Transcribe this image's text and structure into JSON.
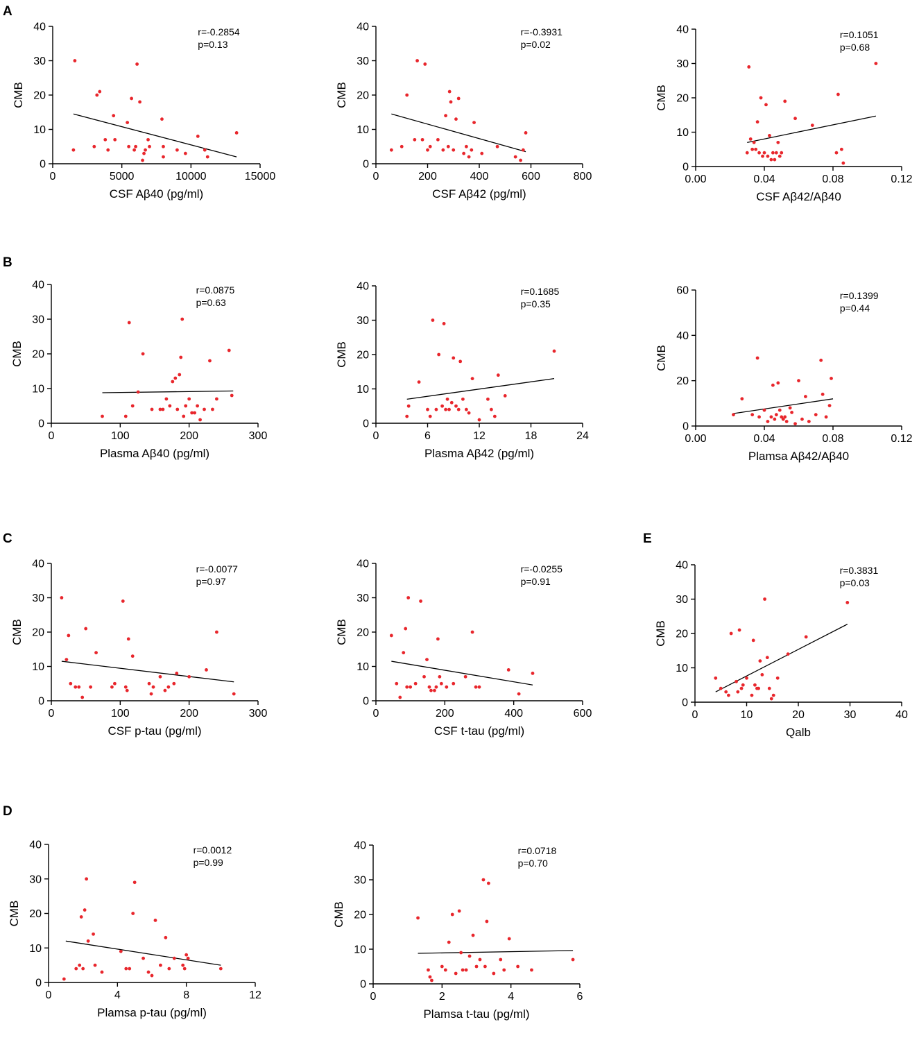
{
  "figure": {
    "panel_letters": [
      "A",
      "B",
      "C",
      "D",
      "E"
    ]
  },
  "colors": {
    "points": "#e8262c",
    "line": "#000000",
    "axes": "#000000"
  },
  "chart_data": [
    {
      "id": "A1",
      "panel": "A",
      "type": "scatter",
      "xlabel": "CSF Aβ40 (pg/ml)",
      "ylabel": "CMB",
      "xlim": [
        0,
        15000
      ],
      "ylim": [
        0,
        40
      ],
      "xticks": [
        "0",
        "5000",
        "10000",
        "15000"
      ],
      "yticks": [
        "0",
        "10",
        "20",
        "30",
        "40"
      ],
      "r_text": "r=-0.2854",
      "p_text": "p=0.13",
      "x": [
        1500,
        1600,
        3000,
        3200,
        3400,
        3800,
        4000,
        4400,
        4500,
        5400,
        5500,
        5700,
        5900,
        6000,
        6100,
        6300,
        6500,
        6600,
        6700,
        6900,
        7000,
        7900,
        8000,
        8000,
        9000,
        9600,
        10500,
        11000,
        11200,
        13300
      ],
      "y": [
        4,
        30,
        5,
        20,
        21,
        7,
        4,
        14,
        7,
        12,
        5,
        19,
        4,
        5,
        29,
        18,
        1,
        3,
        4,
        7,
        5,
        13,
        5,
        2,
        4,
        3,
        8,
        4,
        2,
        9
      ],
      "fit": {
        "x": [
          1500,
          13300
        ],
        "y": [
          14.5,
          2
        ]
      }
    },
    {
      "id": "A2",
      "panel": "A",
      "type": "scatter",
      "xlabel": "CSF Aβ42 (pg/ml)",
      "ylabel": "CMB",
      "xlim": [
        0,
        800
      ],
      "ylim": [
        0,
        40
      ],
      "xticks": [
        "0",
        "200",
        "400",
        "600",
        "800"
      ],
      "yticks": [
        "0",
        "10",
        "20",
        "30",
        "40"
      ],
      "r_text": "r=-0.3931",
      "p_text": "p=0.02",
      "x": [
        60,
        100,
        120,
        150,
        160,
        180,
        190,
        200,
        210,
        240,
        260,
        270,
        280,
        285,
        290,
        300,
        310,
        320,
        340,
        350,
        360,
        370,
        380,
        410,
        470,
        540,
        560,
        570,
        580
      ],
      "y": [
        4,
        5,
        20,
        7,
        30,
        7,
        29,
        4,
        5,
        7,
        4,
        14,
        5,
        21,
        18,
        4,
        13,
        19,
        3,
        5,
        2,
        4,
        12,
        3,
        5,
        2,
        1,
        4,
        9
      ],
      "fit": {
        "x": [
          60,
          580
        ],
        "y": [
          14.5,
          3.5
        ]
      }
    },
    {
      "id": "A3",
      "panel": "A",
      "type": "scatter",
      "xlabel": "CSF Aβ42/Aβ40",
      "ylabel": "CMB",
      "xlim": [
        0,
        0.12
      ],
      "ylim": [
        0,
        40
      ],
      "xticks": [
        "0.00",
        "0.04",
        "0.08",
        "0.12"
      ],
      "yticks": [
        "0",
        "10",
        "20",
        "30",
        "40"
      ],
      "r_text": "r=0.1051",
      "p_text": "p=0.68",
      "x": [
        0.03,
        0.031,
        0.032,
        0.033,
        0.034,
        0.035,
        0.036,
        0.037,
        0.038,
        0.039,
        0.04,
        0.041,
        0.042,
        0.043,
        0.044,
        0.045,
        0.046,
        0.047,
        0.048,
        0.049,
        0.05,
        0.052,
        0.058,
        0.068,
        0.082,
        0.083,
        0.085,
        0.086,
        0.105
      ],
      "y": [
        4,
        29,
        8,
        5,
        7,
        5,
        13,
        4,
        20,
        3,
        4,
        18,
        3,
        9,
        2,
        4,
        2,
        4,
        7,
        3,
        4,
        19,
        14,
        12,
        4,
        21,
        5,
        1,
        30
      ],
      "fit": {
        "x": [
          0.03,
          0.105
        ],
        "y": [
          7,
          14.7
        ]
      }
    },
    {
      "id": "B1",
      "panel": "B",
      "type": "scatter",
      "xlabel": "Plasma Aβ40 (pg/ml)",
      "ylabel": "CMB",
      "xlim": [
        0,
        300
      ],
      "ylim": [
        0,
        40
      ],
      "xticks": [
        "0",
        "100",
        "200",
        "300"
      ],
      "yticks": [
        "0",
        "10",
        "20",
        "30",
        "40"
      ],
      "r_text": "r=0.0875",
      "p_text": "p=0.63",
      "x": [
        74,
        108,
        113,
        118,
        126,
        133,
        146,
        158,
        162,
        167,
        172,
        176,
        180,
        183,
        186,
        188,
        190,
        192,
        195,
        200,
        204,
        208,
        212,
        216,
        222,
        230,
        234,
        240,
        258,
        262
      ],
      "y": [
        2,
        2,
        29,
        5,
        9,
        20,
        4,
        4,
        4,
        7,
        5,
        12,
        13,
        4,
        14,
        19,
        30,
        2,
        5,
        7,
        3,
        3,
        5,
        1,
        4,
        18,
        4,
        7,
        21,
        8
      ],
      "fit": {
        "x": [
          74,
          264
        ],
        "y": [
          8.8,
          9.3
        ]
      }
    },
    {
      "id": "B2",
      "panel": "B",
      "type": "scatter",
      "xlabel": "Plasma Aβ42 (pg/ml)",
      "ylabel": "CMB",
      "xlim": [
        0,
        24
      ],
      "ylim": [
        0,
        40
      ],
      "xticks": [
        "0",
        "6",
        "12",
        "18",
        "24"
      ],
      "yticks": [
        "0",
        "10",
        "20",
        "30",
        "40"
      ],
      "r_text": "r=0.1685",
      "p_text": "p=0.35",
      "x": [
        3.6,
        3.8,
        5.0,
        6.0,
        6.3,
        6.6,
        7.0,
        7.3,
        7.7,
        7.9,
        8.1,
        8.3,
        8.5,
        8.8,
        9.0,
        9.3,
        9.6,
        9.8,
        10.1,
        10.5,
        10.8,
        11.2,
        12.0,
        13.0,
        13.4,
        13.8,
        14.2,
        15.0,
        20.7
      ],
      "y": [
        2,
        5,
        12,
        4,
        2,
        30,
        4,
        20,
        5,
        29,
        4,
        7,
        4,
        6,
        19,
        5,
        4,
        18,
        7,
        4,
        3,
        13,
        1,
        7,
        4,
        2,
        14,
        8,
        21
      ],
      "fit": {
        "x": [
          3.6,
          20.7
        ],
        "y": [
          7,
          13
        ]
      }
    },
    {
      "id": "B3",
      "panel": "B",
      "type": "scatter",
      "xlabel": "Plamsa Aβ42/Aβ40",
      "ylabel": "CMB",
      "xlim": [
        0,
        0.12
      ],
      "ylim": [
        0,
        60
      ],
      "xticks": [
        "0.00",
        "0.04",
        "0.08",
        "0.12"
      ],
      "yticks": [
        "0",
        "20",
        "40",
        "60"
      ],
      "r_text": "r=0.1399",
      "p_text": "p=0.44",
      "x": [
        0.022,
        0.027,
        0.033,
        0.036,
        0.037,
        0.04,
        0.042,
        0.044,
        0.045,
        0.046,
        0.047,
        0.048,
        0.049,
        0.05,
        0.051,
        0.052,
        0.053,
        0.055,
        0.056,
        0.058,
        0.06,
        0.062,
        0.064,
        0.066,
        0.07,
        0.073,
        0.074,
        0.076,
        0.078,
        0.079
      ],
      "y": [
        5,
        12,
        5,
        30,
        4,
        7,
        2,
        4,
        18,
        3,
        5,
        19,
        7,
        4,
        3,
        4,
        2,
        8,
        6,
        1,
        20,
        3,
        13,
        2,
        5,
        29,
        14,
        4,
        9,
        21
      ],
      "fit": {
        "x": [
          0.022,
          0.08
        ],
        "y": [
          5.5,
          12
        ]
      }
    },
    {
      "id": "C1",
      "panel": "C",
      "type": "scatter",
      "xlabel": "CSF p-tau (pg/ml)",
      "ylabel": "CMB",
      "xlim": [
        0,
        300
      ],
      "ylim": [
        0,
        40
      ],
      "xticks": [
        "0",
        "100",
        "200",
        "300"
      ],
      "yticks": [
        "0",
        "10",
        "20",
        "30",
        "40"
      ],
      "r_text": "r=-0.0077",
      "p_text": "p=0.97",
      "x": [
        15,
        22,
        25,
        28,
        35,
        40,
        45,
        50,
        57,
        65,
        88,
        92,
        104,
        108,
        110,
        112,
        118,
        142,
        145,
        148,
        158,
        165,
        170,
        178,
        182,
        200,
        225,
        240,
        265
      ],
      "y": [
        30,
        12,
        19,
        5,
        4,
        4,
        1,
        21,
        4,
        14,
        4,
        5,
        29,
        4,
        3,
        18,
        13,
        5,
        2,
        4,
        7,
        3,
        4,
        5,
        8,
        7,
        9,
        20,
        2
      ],
      "fit": {
        "x": [
          15,
          265
        ],
        "y": [
          11.5,
          5.5
        ]
      }
    },
    {
      "id": "C2",
      "panel": "C",
      "type": "scatter",
      "xlabel": "CSF t-tau (pg/ml)",
      "ylabel": "CMB",
      "xlim": [
        0,
        600
      ],
      "ylim": [
        0,
        40
      ],
      "xticks": [
        "0",
        "200",
        "400",
        "600"
      ],
      "yticks": [
        "0",
        "10",
        "20",
        "30",
        "40"
      ],
      "r_text": "r=-0.0255",
      "p_text": "p=0.91",
      "x": [
        45,
        60,
        70,
        80,
        86,
        90,
        94,
        100,
        115,
        130,
        140,
        148,
        155,
        160,
        170,
        175,
        180,
        185,
        190,
        205,
        225,
        260,
        280,
        290,
        300,
        385,
        415,
        455
      ],
      "y": [
        19,
        5,
        1,
        14,
        21,
        4,
        30,
        4,
        5,
        29,
        7,
        12,
        4,
        3,
        3,
        4,
        18,
        7,
        5,
        4,
        5,
        7,
        20,
        4,
        4,
        9,
        2,
        8
      ],
      "fit": {
        "x": [
          45,
          455
        ],
        "y": [
          11.5,
          4.6
        ]
      }
    },
    {
      "id": "E1",
      "panel": "E",
      "type": "scatter",
      "xlabel": "Qalb",
      "ylabel": "CMB",
      "xlim": [
        0,
        40
      ],
      "ylim": [
        0,
        40
      ],
      "xticks": [
        "0",
        "10",
        "20",
        "30",
        "40"
      ],
      "yticks": [
        "0",
        "10",
        "20",
        "30",
        "40"
      ],
      "r_text": "r=0.3831",
      "p_text": "p=0.03",
      "x": [
        4,
        5,
        6,
        6.5,
        7,
        8,
        8.3,
        8.6,
        9,
        9.3,
        10,
        11,
        11.3,
        11.6,
        12,
        12.3,
        12.6,
        13,
        13.5,
        14,
        14.4,
        14.8,
        15.2,
        16,
        18,
        21.5,
        29.5
      ],
      "y": [
        7,
        4,
        3,
        2,
        20,
        6,
        3,
        21,
        4,
        5,
        7,
        2,
        18,
        5,
        4,
        4,
        12,
        8,
        30,
        13,
        4,
        1,
        2,
        7,
        14,
        19,
        29
      ],
      "fit": {
        "x": [
          4,
          29.5
        ],
        "y": [
          3,
          22.7
        ]
      }
    },
    {
      "id": "D1",
      "panel": "D",
      "type": "scatter",
      "xlabel": "Plamsa p-tau (pg/ml)",
      "ylabel": "CMB",
      "xlim": [
        0,
        12
      ],
      "ylim": [
        0,
        40
      ],
      "xticks": [
        "0",
        "4",
        "8",
        "12"
      ],
      "yticks": [
        "0",
        "10",
        "20",
        "30",
        "40"
      ],
      "r_text": "r=0.0012",
      "p_text": "p=0.99",
      "x": [
        0.9,
        1.6,
        1.8,
        1.9,
        2.0,
        2.1,
        2.2,
        2.3,
        2.6,
        2.7,
        3.1,
        4.2,
        4.5,
        4.7,
        4.9,
        5.0,
        5.5,
        5.8,
        6.0,
        6.2,
        6.5,
        6.8,
        7.0,
        7.3,
        7.8,
        7.9,
        8.0,
        8.1,
        10.0
      ],
      "y": [
        1,
        4,
        5,
        19,
        4,
        21,
        30,
        12,
        14,
        5,
        3,
        9,
        4,
        4,
        20,
        29,
        7,
        3,
        2,
        18,
        5,
        13,
        4,
        7,
        5,
        4,
        8,
        7,
        4
      ],
      "fit": {
        "x": [
          1.0,
          10.0
        ],
        "y": [
          12,
          5
        ]
      }
    },
    {
      "id": "D2",
      "panel": "D",
      "type": "scatter",
      "xlabel": "Plamsa t-tau (pg/ml)",
      "ylabel": "CMB",
      "xlim": [
        0,
        6
      ],
      "ylim": [
        0,
        40
      ],
      "xticks": [
        "0",
        "2",
        "4",
        "6"
      ],
      "yticks": [
        "0",
        "10",
        "20",
        "30",
        "40"
      ],
      "r_text": "r=0.0718",
      "p_text": "p=0.70",
      "x": [
        1.3,
        1.6,
        1.65,
        1.7,
        2.0,
        2.1,
        2.2,
        2.3,
        2.4,
        2.5,
        2.55,
        2.6,
        2.7,
        2.8,
        2.9,
        3.0,
        3.1,
        3.2,
        3.25,
        3.3,
        3.35,
        3.5,
        3.7,
        3.8,
        3.95,
        4.2,
        4.6,
        5.8
      ],
      "y": [
        19,
        4,
        2,
        1,
        5,
        4,
        12,
        20,
        3,
        21,
        9,
        4,
        4,
        8,
        14,
        5,
        7,
        30,
        5,
        18,
        29,
        3,
        7,
        4,
        13,
        5,
        4,
        7
      ],
      "fit": {
        "x": [
          1.3,
          5.8
        ],
        "y": [
          8.8,
          9.6
        ]
      }
    }
  ]
}
